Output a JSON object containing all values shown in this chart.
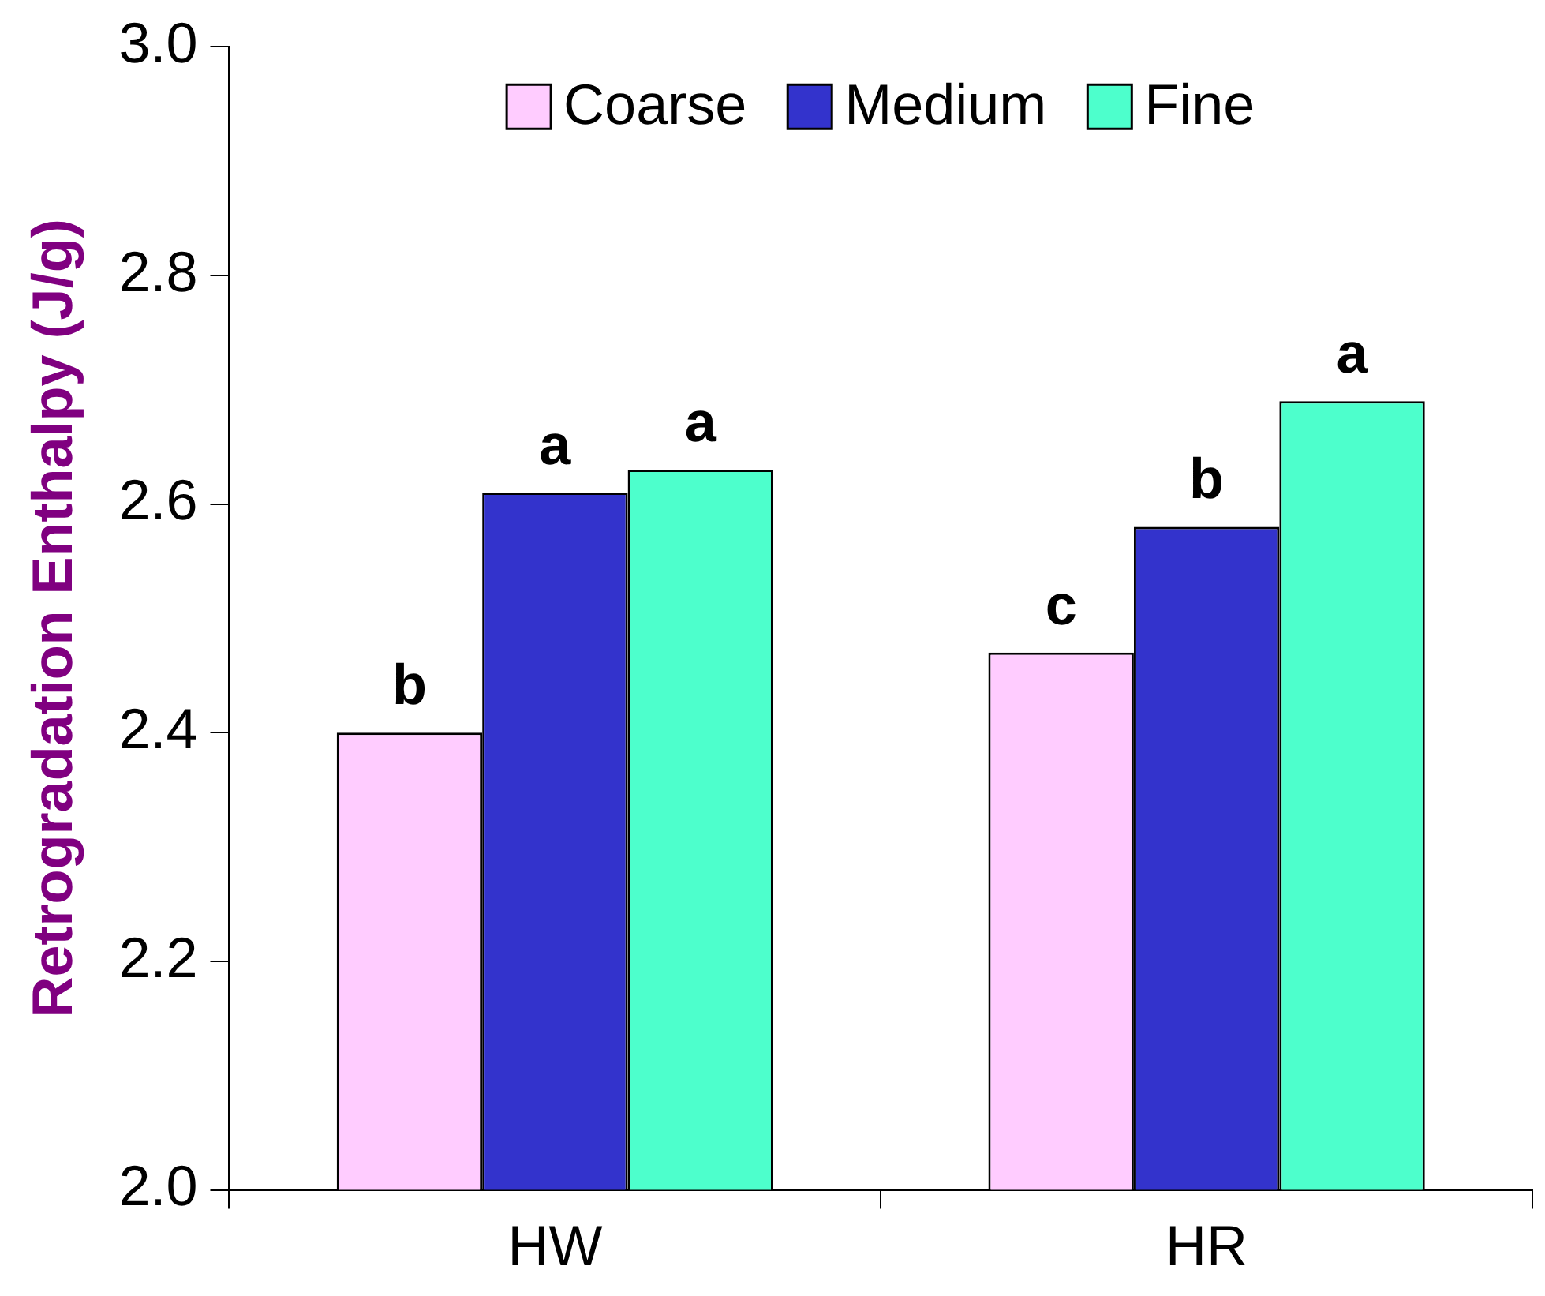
{
  "chart_data": {
    "type": "bar",
    "ylabel": "Retrogradation Enthalpy (J/g)",
    "categories": [
      "HW",
      "HR"
    ],
    "series": [
      {
        "name": "Coarse",
        "color": "#ffccff",
        "values": [
          2.4,
          2.47
        ],
        "value_labels": [
          "b",
          "c"
        ]
      },
      {
        "name": "Medium",
        "color": "#3333cc",
        "values": [
          2.61,
          2.58
        ],
        "value_labels": [
          "a",
          "b"
        ]
      },
      {
        "name": "Fine",
        "color": "#4dffcc",
        "values": [
          2.63,
          2.69
        ],
        "value_labels": [
          "a",
          "a"
        ]
      }
    ],
    "ylim": [
      2.0,
      3.0
    ],
    "yticks": [
      {
        "value": 2.0,
        "label": "2.0"
      },
      2.2,
      2.4,
      2.6,
      2.8,
      {
        "value": 3.0,
        "label": "3.0"
      }
    ],
    "legend": "top",
    "grid": false
  }
}
